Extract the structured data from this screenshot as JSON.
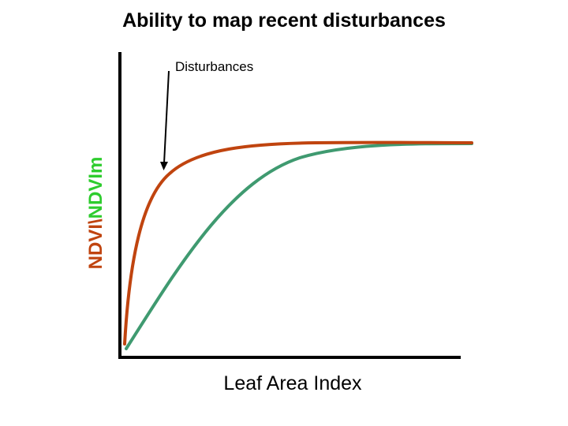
{
  "title": "Ability to map recent disturbances",
  "annotation": "Disturbances",
  "x_axis_label": "Leaf Area Index",
  "y_axis_label": {
    "part1": "NDVI",
    "separator": "\\",
    "part2": "NDVIm"
  },
  "colors": {
    "ndvi_curve": "#c0440f",
    "ndvim_curve": "#3f9a70",
    "ndvi_label": "#c0440f",
    "ndvim_label": "#2ecc2e",
    "axis": "#000000"
  }
}
